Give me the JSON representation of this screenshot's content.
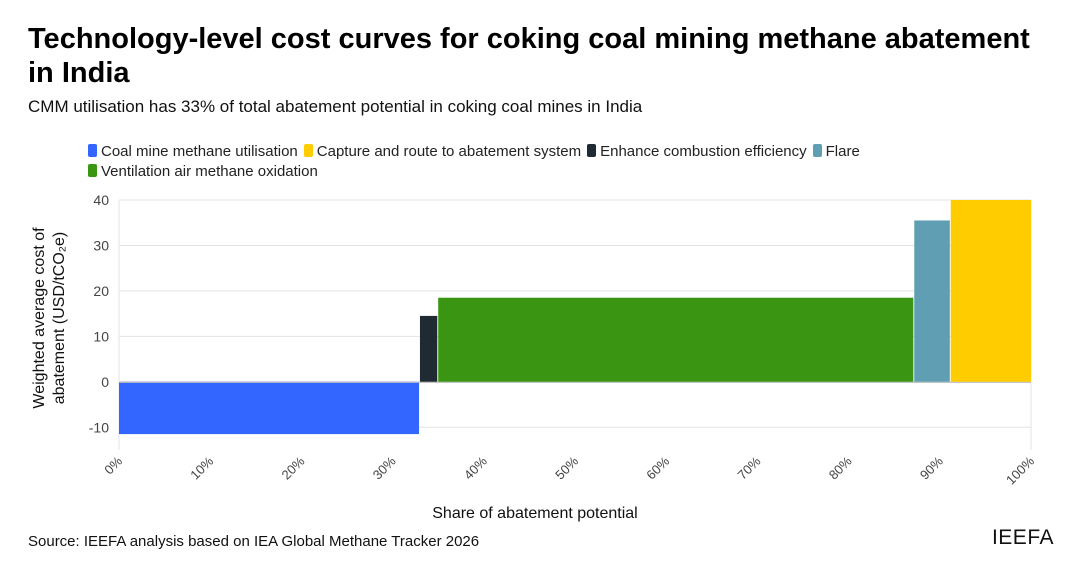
{
  "chart_data": {
    "type": "bar",
    "title": "Technology-level cost curves for coking coal mining methane abatement in India",
    "subtitle": "CMM utilisation has 33% of total abatement potential in coking coal mines in India",
    "xlabel": "Share of abatement potential",
    "ylabel_lines": [
      "Weighted average cost of",
      "abatement (USD/tCO₂e)"
    ],
    "xlim": [
      0,
      100
    ],
    "ylim": [
      -15,
      40
    ],
    "x_ticks": [
      "0%",
      "10%",
      "20%",
      "30%",
      "40%",
      "50%",
      "60%",
      "70%",
      "80%",
      "90%",
      "100%"
    ],
    "x_tick_values": [
      0,
      10,
      20,
      30,
      40,
      50,
      60,
      70,
      80,
      90,
      100
    ],
    "y_ticks": [
      "40",
      "30",
      "20",
      "10",
      "0",
      "-10"
    ],
    "y_tick_values": [
      40,
      30,
      20,
      10,
      0,
      -10
    ],
    "legend_position": "top",
    "series": [
      {
        "name": "Coal mine methane utilisation",
        "color": "#3366ff",
        "x_start": 0,
        "x_end": 32.9,
        "value": -11.5
      },
      {
        "name": "Capture and route to abatement system",
        "color": "#ffcc00",
        "x_start": 91.2,
        "x_end": 100,
        "value": 40
      },
      {
        "name": "Enhance combustion efficiency",
        "color": "#1f2a33",
        "x_start": 33,
        "x_end": 34.9,
        "value": 14.5
      },
      {
        "name": "Flare",
        "color": "#5f9eb3",
        "x_start": 87.2,
        "x_end": 91.1,
        "value": 35.5
      },
      {
        "name": "Ventilation air methane oxidation",
        "color": "#3a9612",
        "x_start": 35,
        "x_end": 87.1,
        "value": 18.5
      }
    ]
  },
  "footer": {
    "source": "Source: IEEFA analysis based on IEA Global Methane Tracker 2026",
    "brand": "IEEFA"
  }
}
